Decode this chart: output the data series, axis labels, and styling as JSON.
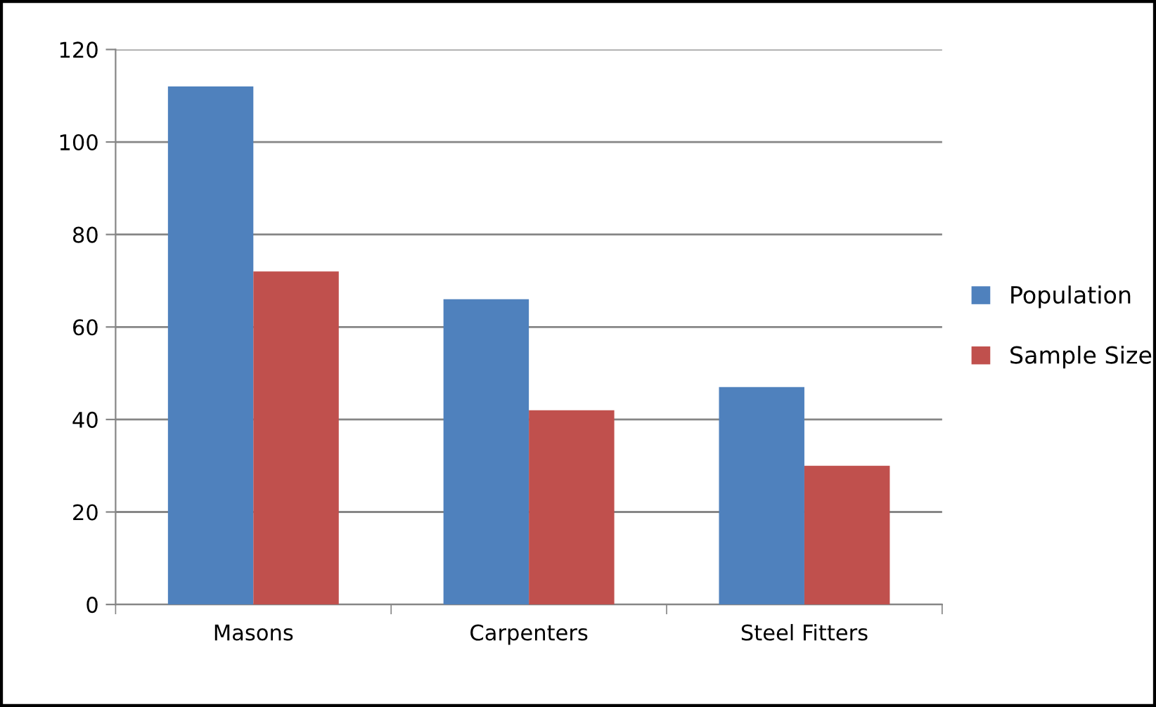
{
  "chart_data": {
    "type": "bar",
    "categories": [
      "Masons",
      "Carpenters",
      "Steel Fitters"
    ],
    "series": [
      {
        "name": "Population",
        "color": "#4f81bd",
        "values": [
          112,
          66,
          47
        ]
      },
      {
        "name": "Sample Size",
        "color": "#c0504d",
        "values": [
          72,
          42,
          30
        ]
      }
    ],
    "ylim": [
      0,
      120
    ],
    "yticks": [
      0,
      20,
      40,
      60,
      80,
      100,
      120
    ],
    "grid": "y",
    "legend": "right"
  }
}
